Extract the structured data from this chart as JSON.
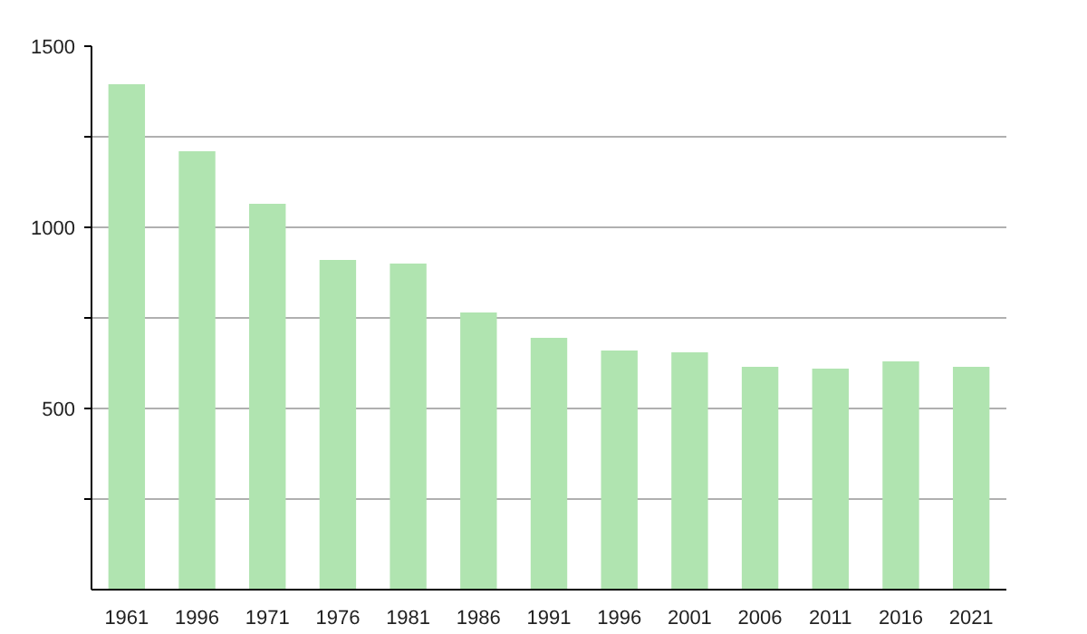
{
  "chart_data": {
    "type": "bar",
    "categories": [
      "1961",
      "1996",
      "1971",
      "1976",
      "1981",
      "1986",
      "1991",
      "1996",
      "2001",
      "2006",
      "2011",
      "2016",
      "2021"
    ],
    "values": [
      1395,
      1210,
      1065,
      910,
      900,
      765,
      695,
      660,
      655,
      615,
      610,
      630,
      615
    ],
    "color": "#b0e4b0",
    "ylim": [
      0,
      1500
    ],
    "yticks": [
      {
        "value": 250,
        "label": null
      },
      500,
      {
        "value": 750,
        "label": null
      },
      1000,
      {
        "value": 1250,
        "label": null
      },
      1500
    ],
    "grid": "y"
  }
}
